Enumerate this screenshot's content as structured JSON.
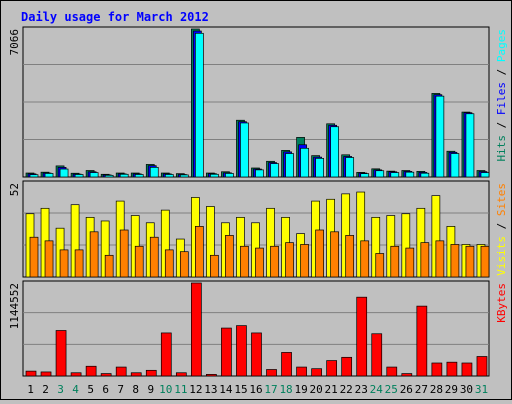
{
  "title": "Daily usage for March 2012",
  "days": [
    "1",
    "2",
    "3",
    "4",
    "5",
    "6",
    "7",
    "8",
    "9",
    "10",
    "11",
    "12",
    "13",
    "14",
    "15",
    "16",
    "17",
    "18",
    "19",
    "20",
    "21",
    "22",
    "23",
    "24",
    "25",
    "26",
    "27",
    "28",
    "29",
    "30",
    "31"
  ],
  "weekend_days": [
    3,
    4,
    10,
    11,
    17,
    18,
    24,
    25,
    31
  ],
  "colors": {
    "hits": "#00805c",
    "files": "#0000ff",
    "pages": "#00ffff",
    "sites": "#ff8000",
    "visits": "#ffff00",
    "kbytes": "#ff0000",
    "title": "#0000ff",
    "weekday": "#000000",
    "weekend": "#00805c"
  },
  "chart_data": [
    {
      "type": "bar",
      "panel": "hits-files-pages",
      "ylim": [
        0,
        7066
      ],
      "ymax_label": "7066",
      "legend": [
        "Pages",
        "Files",
        "Hits"
      ],
      "series": [
        {
          "name": "Hits",
          "values": [
            190,
            230,
            530,
            180,
            310,
            130,
            190,
            190,
            600,
            190,
            160,
            7066,
            190,
            250,
            2710,
            430,
            750,
            1270,
            1890,
            1020,
            2540,
            1060,
            220,
            390,
            280,
            310,
            270,
            3990,
            1230,
            3100,
            310
          ]
        },
        {
          "name": "Files",
          "values": [
            150,
            190,
            460,
            140,
            250,
            100,
            150,
            150,
            540,
            150,
            120,
            6970,
            160,
            200,
            2640,
            380,
            690,
            1200,
            1540,
            950,
            2470,
            980,
            190,
            340,
            250,
            270,
            220,
            3930,
            1180,
            3070,
            260
          ]
        },
        {
          "name": "Pages",
          "values": [
            110,
            170,
            380,
            120,
            210,
            80,
            130,
            120,
            460,
            120,
            100,
            6860,
            130,
            170,
            2580,
            340,
            640,
            1120,
            1370,
            890,
            2400,
            930,
            160,
            300,
            210,
            230,
            180,
            3860,
            1120,
            3020,
            210
          ]
        }
      ]
    },
    {
      "type": "bar",
      "panel": "sites-visits",
      "ylim": [
        0,
        52
      ],
      "ymax_label": "52",
      "legend": [
        "Sites",
        "Visits"
      ],
      "series": [
        {
          "name": "Visits",
          "values": [
            35,
            38,
            27,
            40,
            33,
            31,
            42,
            34,
            30,
            37,
            21,
            44,
            39,
            30,
            33,
            30,
            38,
            33,
            24,
            42,
            43,
            46,
            47,
            33,
            34,
            35,
            38,
            45,
            28,
            18,
            18
          ]
        },
        {
          "name": "Sites",
          "values": [
            22,
            20,
            15,
            15,
            25,
            12,
            26,
            17,
            22,
            15,
            14,
            28,
            12,
            23,
            17,
            16,
            17,
            19,
            18,
            26,
            25,
            23,
            20,
            13,
            17,
            16,
            19,
            20,
            18,
            17,
            17
          ]
        }
      ]
    },
    {
      "type": "bar",
      "panel": "kbytes",
      "ylim": [
        0,
        1144552
      ],
      "ymax_label": "1144552",
      "legend": [
        "KBytes"
      ],
      "series": [
        {
          "name": "KBytes",
          "values": [
            60000,
            50000,
            560000,
            40000,
            120000,
            30000,
            110000,
            40000,
            70000,
            530000,
            40000,
            1144552,
            20000,
            590000,
            620000,
            530000,
            80000,
            290000,
            110000,
            90000,
            190000,
            230000,
            970000,
            520000,
            110000,
            30000,
            860000,
            160000,
            170000,
            160000,
            240000
          ]
        }
      ]
    }
  ]
}
